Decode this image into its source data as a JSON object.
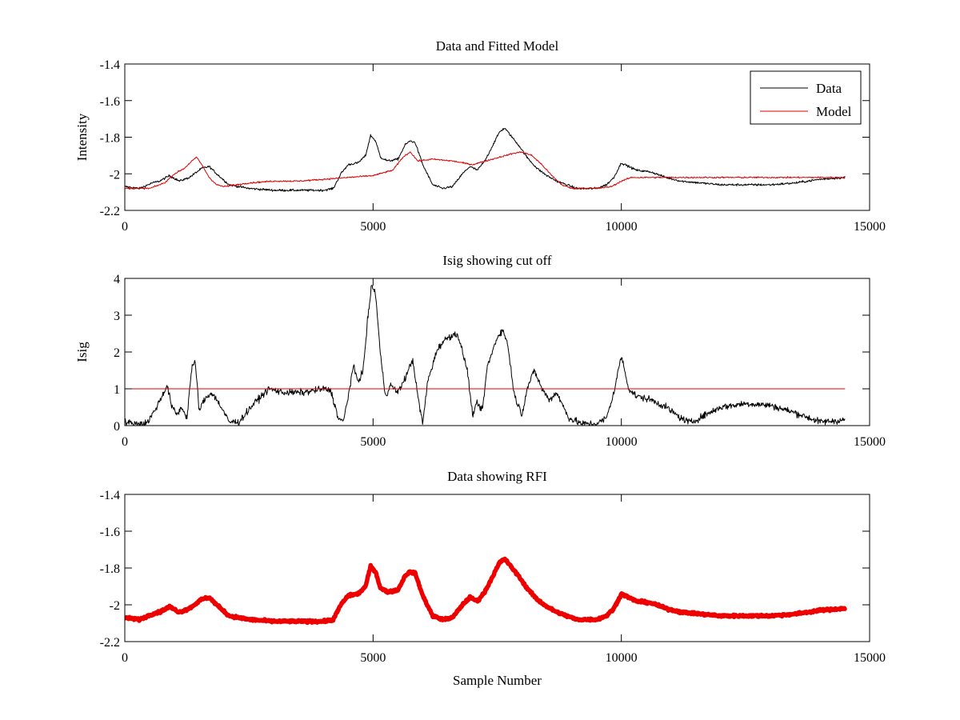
{
  "chart_data": [
    {
      "type": "line",
      "title": "Data and Fitted Model",
      "xlabel": "",
      "ylabel": "Intensity",
      "xlim": [
        0,
        15000
      ],
      "ylim": [
        -2.2,
        -1.4
      ],
      "xticks": [
        0,
        5000,
        10000,
        15000
      ],
      "xtick_labels": [
        "0",
        "5000",
        "10000",
        "15000"
      ],
      "yticks": [
        -1.4,
        -1.6,
        -1.8,
        -2,
        -2.2
      ],
      "ytick_labels": [
        "-1.4",
        "-1.6",
        "-1.8",
        "-2",
        "-2.2"
      ],
      "grid": false,
      "legend_position": "top-right",
      "series": [
        {
          "name": "Data",
          "color": "#000000",
          "noise": 0.006,
          "x": [
            0,
            300,
            550,
            700,
            900,
            1100,
            1300,
            1450,
            1550,
            1700,
            1850,
            2100,
            2500,
            3000,
            3500,
            4000,
            4200,
            4350,
            4500,
            4700,
            4850,
            4950,
            5050,
            5150,
            5300,
            5500,
            5650,
            5750,
            5850,
            6000,
            6200,
            6400,
            6600,
            6800,
            6950,
            7100,
            7250,
            7400,
            7550,
            7650,
            7800,
            7950,
            8100,
            8300,
            8500,
            8700,
            8900,
            9100,
            9300,
            9500,
            9700,
            9850,
            10000,
            10150,
            10300,
            10600,
            10900,
            11200,
            11600,
            12000,
            12500,
            13000,
            13500,
            14000,
            14500
          ],
          "y": [
            -2.07,
            -2.08,
            -2.05,
            -2.04,
            -2.01,
            -2.04,
            -2.02,
            -1.99,
            -1.97,
            -1.96,
            -2.0,
            -2.06,
            -2.08,
            -2.09,
            -2.09,
            -2.09,
            -2.08,
            -2.0,
            -1.95,
            -1.94,
            -1.9,
            -1.79,
            -1.82,
            -1.91,
            -1.93,
            -1.92,
            -1.84,
            -1.82,
            -1.83,
            -1.95,
            -2.06,
            -2.08,
            -2.07,
            -2.0,
            -1.96,
            -1.98,
            -1.93,
            -1.85,
            -1.77,
            -1.75,
            -1.8,
            -1.85,
            -1.91,
            -1.97,
            -2.01,
            -2.04,
            -2.06,
            -2.08,
            -2.08,
            -2.08,
            -2.06,
            -2.02,
            -1.94,
            -1.96,
            -1.98,
            -1.99,
            -2.02,
            -2.04,
            -2.05,
            -2.06,
            -2.06,
            -2.06,
            -2.05,
            -2.03,
            -2.02
          ]
        },
        {
          "name": "Model",
          "color": "#dd0000",
          "noise": 0.004,
          "x": [
            0,
            500,
            800,
            1000,
            1200,
            1350,
            1450,
            1550,
            1700,
            1850,
            2000,
            2500,
            3000,
            3500,
            4000,
            4500,
            5000,
            5400,
            5600,
            5750,
            5900,
            6200,
            6600,
            7000,
            7400,
            7800,
            8000,
            8200,
            8400,
            8600,
            8800,
            9000,
            9200,
            9500,
            9800,
            10000,
            10200,
            10500,
            11000,
            12000,
            13000,
            14000,
            14500
          ],
          "y": [
            -2.08,
            -2.08,
            -2.05,
            -2.0,
            -1.97,
            -1.93,
            -1.91,
            -1.95,
            -2.02,
            -2.06,
            -2.07,
            -2.05,
            -2.04,
            -2.04,
            -2.03,
            -2.02,
            -2.01,
            -1.98,
            -1.91,
            -1.88,
            -1.93,
            -1.92,
            -1.93,
            -1.95,
            -1.92,
            -1.89,
            -1.88,
            -1.9,
            -1.95,
            -2.01,
            -2.06,
            -2.08,
            -2.08,
            -2.08,
            -2.07,
            -2.04,
            -2.02,
            -2.02,
            -2.02,
            -2.02,
            -2.02,
            -2.02,
            -2.02
          ]
        }
      ]
    },
    {
      "type": "line",
      "title": "Isig showing cut off",
      "xlabel": "",
      "ylabel": "Isig",
      "xlim": [
        0,
        15000
      ],
      "ylim": [
        0,
        4
      ],
      "xticks": [
        0,
        5000,
        10000,
        15000
      ],
      "xtick_labels": [
        "0",
        "5000",
        "10000",
        "15000"
      ],
      "yticks": [
        0,
        1,
        2,
        3,
        4
      ],
      "ytick_labels": [
        "0",
        "1",
        "2",
        "3",
        "4"
      ],
      "grid": false,
      "series": [
        {
          "color": "#000000",
          "noise": 0.09,
          "x": [
            0,
            200,
            450,
            600,
            750,
            850,
            950,
            1050,
            1150,
            1250,
            1350,
            1420,
            1500,
            1600,
            1750,
            1900,
            2100,
            2300,
            2600,
            2900,
            3200,
            3600,
            4000,
            4150,
            4300,
            4400,
            4500,
            4600,
            4700,
            4800,
            4900,
            4970,
            5050,
            5150,
            5250,
            5350,
            5500,
            5650,
            5800,
            5900,
            6000,
            6100,
            6300,
            6500,
            6700,
            6900,
            7000,
            7100,
            7200,
            7300,
            7500,
            7600,
            7700,
            7850,
            8000,
            8100,
            8250,
            8400,
            8550,
            8700,
            8800,
            8950,
            9200,
            9500,
            9700,
            9850,
            10000,
            10150,
            10300,
            10600,
            10900,
            11200,
            11400,
            11700,
            12000,
            12500,
            13000,
            13500,
            14000,
            14500
          ],
          "y": [
            0.1,
            0.05,
            0.08,
            0.4,
            0.8,
            1.1,
            0.5,
            0.3,
            0.5,
            0.2,
            1.6,
            1.7,
            0.4,
            0.7,
            0.9,
            0.6,
            0.1,
            0.1,
            0.6,
            1.0,
            0.9,
            0.9,
            1.0,
            0.95,
            0.2,
            0.1,
            0.8,
            1.6,
            1.2,
            1.5,
            3.0,
            3.8,
            3.6,
            1.9,
            0.8,
            1.1,
            0.9,
            1.3,
            1.8,
            0.8,
            0.05,
            1.2,
            2.1,
            2.4,
            2.5,
            1.5,
            0.3,
            0.6,
            0.4,
            1.6,
            2.4,
            2.6,
            2.3,
            0.8,
            0.3,
            1.0,
            1.5,
            1.0,
            0.7,
            0.9,
            0.6,
            0.2,
            0.05,
            0.05,
            0.2,
            0.9,
            1.9,
            1.0,
            0.8,
            0.7,
            0.5,
            0.2,
            0.08,
            0.3,
            0.5,
            0.6,
            0.55,
            0.35,
            0.1,
            0.15
          ]
        },
        {
          "color": "#dd0000",
          "noise": 0,
          "x": [
            0,
            14500
          ],
          "y": [
            1,
            1
          ]
        }
      ]
    },
    {
      "type": "line",
      "title": "Data showing RFI",
      "xlabel": "Sample Number",
      "ylabel": "",
      "xlim": [
        0,
        15000
      ],
      "ylim": [
        -2.2,
        -1.4
      ],
      "xticks": [
        0,
        5000,
        10000,
        15000
      ],
      "xtick_labels": [
        "0",
        "5000",
        "10000",
        "15000"
      ],
      "yticks": [
        -1.4,
        -1.6,
        -1.8,
        -2,
        -2.2
      ],
      "ytick_labels": [
        "-1.4",
        "-1.6",
        "-1.8",
        "-2",
        "-2.2"
      ],
      "grid": false,
      "series": [
        {
          "color": "#ee0000",
          "noise": 0.006,
          "x": [
            0,
            300,
            550,
            700,
            900,
            1100,
            1300,
            1450,
            1550,
            1700,
            1850,
            2100,
            2500,
            3000,
            3500,
            4000,
            4200,
            4350,
            4500,
            4700,
            4850,
            4950,
            5050,
            5150,
            5300,
            5500,
            5650,
            5750,
            5850,
            6000,
            6200,
            6400,
            6600,
            6800,
            6950,
            7100,
            7250,
            7400,
            7550,
            7650,
            7800,
            7950,
            8100,
            8300,
            8500,
            8700,
            8900,
            9100,
            9300,
            9500,
            9700,
            9850,
            10000,
            10150,
            10300,
            10600,
            10900,
            11200,
            11600,
            12000,
            12500,
            13000,
            13500,
            14000,
            14500
          ],
          "y": [
            -2.07,
            -2.08,
            -2.05,
            -2.04,
            -2.01,
            -2.04,
            -2.02,
            -1.99,
            -1.97,
            -1.96,
            -2.0,
            -2.06,
            -2.08,
            -2.09,
            -2.09,
            -2.09,
            -2.08,
            -2.0,
            -1.95,
            -1.94,
            -1.9,
            -1.79,
            -1.82,
            -1.91,
            -1.93,
            -1.92,
            -1.84,
            -1.82,
            -1.83,
            -1.95,
            -2.06,
            -2.08,
            -2.07,
            -2.0,
            -1.96,
            -1.98,
            -1.93,
            -1.85,
            -1.77,
            -1.75,
            -1.8,
            -1.85,
            -1.91,
            -1.97,
            -2.01,
            -2.04,
            -2.06,
            -2.08,
            -2.08,
            -2.08,
            -2.06,
            -2.02,
            -1.94,
            -1.96,
            -1.98,
            -1.99,
            -2.02,
            -2.04,
            -2.05,
            -2.06,
            -2.06,
            -2.06,
            -2.05,
            -2.03,
            -2.02
          ]
        }
      ]
    }
  ]
}
